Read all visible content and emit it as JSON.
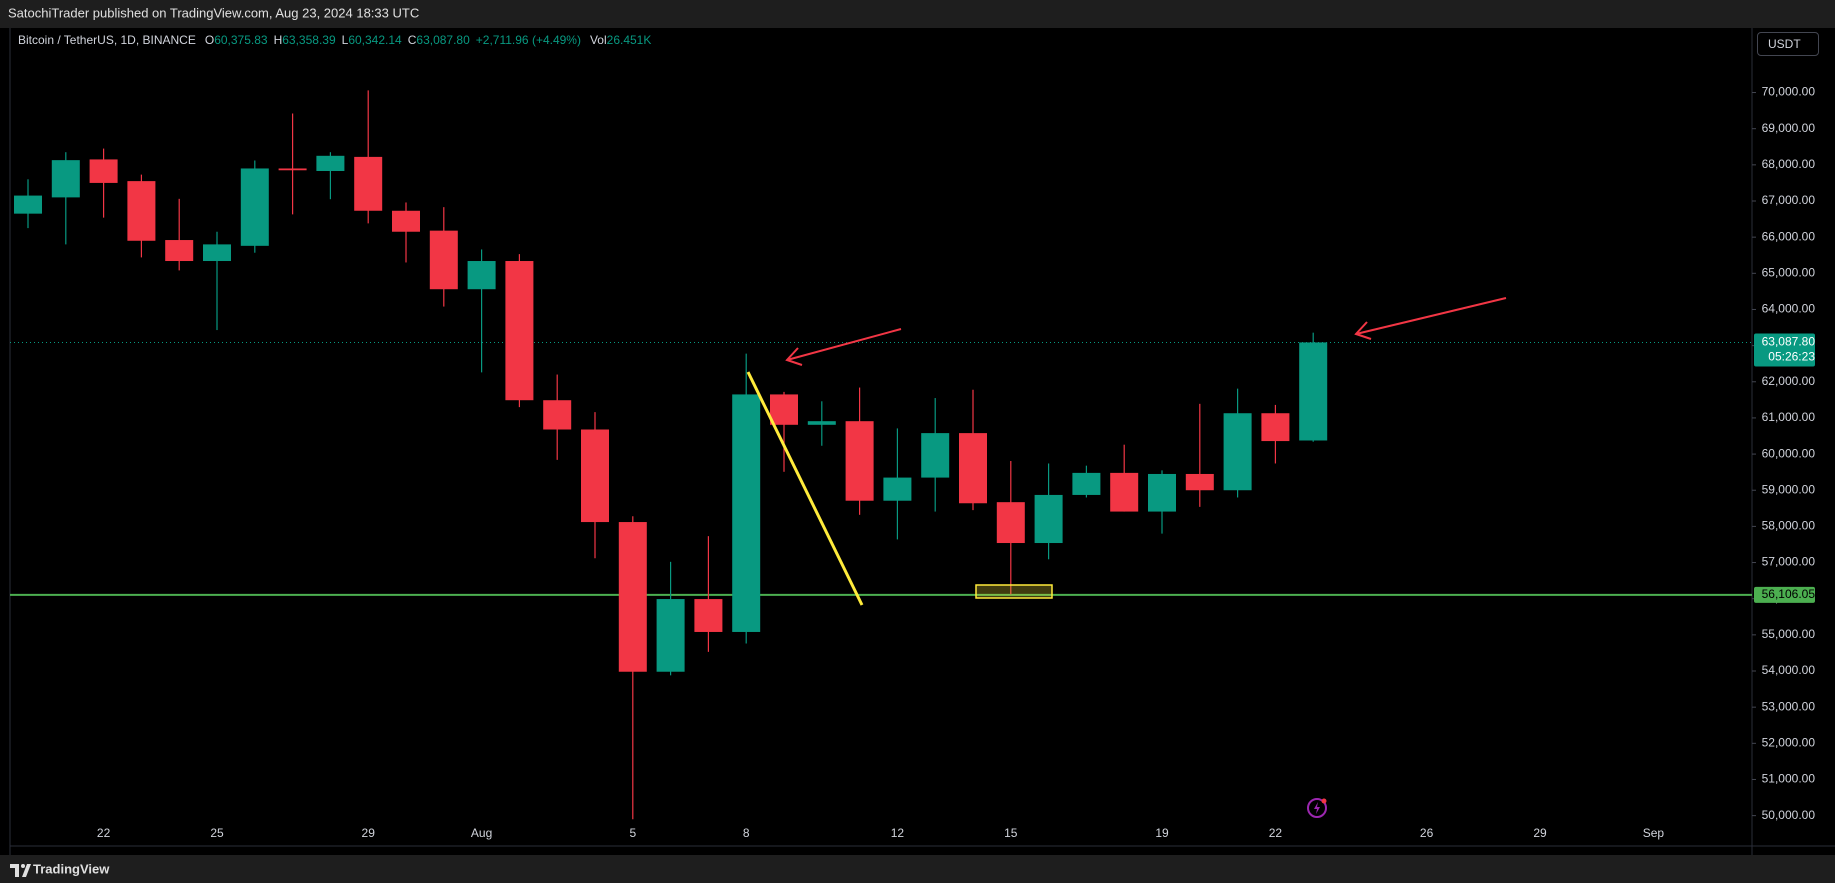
{
  "header": {
    "publisher": "SatochiTrader published on TradingView.com, Aug 23, 2024 18:33 UTC"
  },
  "footer": {
    "brand": "TradingView"
  },
  "currency_button": "USDT",
  "info": {
    "symbol": "Bitcoin / TetherUS, 1D, BINANCE",
    "fields": [
      {
        "key": "O",
        "value": "60,375.83"
      },
      {
        "key": "H",
        "value": "63,358.39"
      },
      {
        "key": "L",
        "value": "60,342.14"
      },
      {
        "key": "C",
        "value": "63,087.80"
      }
    ],
    "change": "+2,711.96 (+4.49%)",
    "volume_key": "Vol",
    "volume": "26.451K"
  },
  "chart_data": {
    "type": "candlestick",
    "categories": [
      null,
      null,
      "22",
      null,
      null,
      "25",
      null,
      null,
      null,
      "29",
      null,
      null,
      "Aug",
      null,
      null,
      null,
      "5",
      null,
      null,
      "8",
      null,
      null,
      null,
      "12",
      null,
      null,
      "15",
      null,
      null,
      null,
      "19",
      null,
      null,
      "22",
      null,
      null,
      null,
      "26",
      null,
      null,
      "29",
      null,
      null,
      "Sep",
      null,
      null
    ],
    "open": [
      66650,
      67100,
      68150,
      67550,
      65920,
      65340,
      65760,
      67900,
      67830,
      68220,
      66730,
      66180,
      64560,
      65340,
      61490,
      60680,
      58120,
      53980,
      55990,
      55080,
      61650,
      60810,
      60910,
      58710,
      59350,
      60580,
      58670,
      57540,
      58870,
      59480,
      58410,
      59450,
      59000,
      61130,
      60375.83,
      null,
      null,
      null,
      null,
      null,
      null,
      null,
      null,
      null,
      null,
      null
    ],
    "high": [
      67600,
      68350,
      68450,
      67730,
      67060,
      66150,
      68120,
      69420,
      68350,
      70060,
      66960,
      66830,
      65660,
      65530,
      62200,
      61160,
      58280,
      57020,
      57730,
      62780,
      61720,
      61460,
      61840,
      60710,
      61550,
      61780,
      59810,
      59740,
      59680,
      60260,
      59550,
      61390,
      61810,
      61360,
      63358.39,
      null,
      null,
      null,
      null,
      null,
      null,
      null,
      null,
      null,
      null,
      null
    ],
    "low": [
      66250,
      65800,
      66540,
      65440,
      65080,
      63430,
      65570,
      66630,
      67050,
      66380,
      65300,
      64080,
      62260,
      61300,
      59840,
      57120,
      49900,
      53880,
      54530,
      54760,
      59510,
      60230,
      58320,
      57640,
      58410,
      58450,
      56120,
      57090,
      58800,
      58410,
      57800,
      58540,
      58800,
      59740,
      60342.14,
      null,
      null,
      null,
      null,
      null,
      null,
      null,
      null,
      null,
      null,
      null
    ],
    "close": [
      67150,
      68130,
      67500,
      65900,
      65340,
      65800,
      67900,
      67850,
      68250,
      66730,
      66150,
      64560,
      65340,
      61490,
      60680,
      58120,
      53980,
      55990,
      55080,
      61650,
      60810,
      60910,
      58710,
      59350,
      60580,
      58640,
      57540,
      58870,
      59480,
      58410,
      59450,
      59000,
      61130,
      60360,
      63087.8,
      null,
      null,
      null,
      null,
      null,
      null,
      null,
      null,
      null,
      null,
      null
    ],
    "up_color": "#089981",
    "down_color": "#f23645",
    "ylim": [
      49160,
      71785
    ],
    "yticks": [
      {
        "value": 50000,
        "label": "50,000.00"
      },
      {
        "value": 51000,
        "label": "51,000.00"
      },
      {
        "value": 52000,
        "label": "52,000.00"
      },
      {
        "value": 53000,
        "label": "53,000.00"
      },
      {
        "value": 54000,
        "label": "54,000.00"
      },
      {
        "value": 55000,
        "label": "55,000.00"
      },
      {
        "value": 56000,
        "label": "56,000.00"
      },
      {
        "value": 57000,
        "label": "57,000.00"
      },
      {
        "value": 58000,
        "label": "58,000.00"
      },
      {
        "value": 59000,
        "label": "59,000.00"
      },
      {
        "value": 60000,
        "label": "60,000.00"
      },
      {
        "value": 61000,
        "label": "61,000.00"
      },
      {
        "value": 62000,
        "label": "62,000.00"
      },
      {
        "value": 63000,
        "label": "63,000.00"
      },
      {
        "value": 64000,
        "label": "64,000.00"
      },
      {
        "value": 65000,
        "label": "65,000.00"
      },
      {
        "value": 66000,
        "label": "66,000.00"
      },
      {
        "value": 67000,
        "label": "67,000.00"
      },
      {
        "value": 68000,
        "label": "68,000.00"
      },
      {
        "value": 69000,
        "label": "69,000.00"
      },
      {
        "value": 70000,
        "label": "70,000.00"
      }
    ],
    "grid": false,
    "hline": {
      "value": 56106.05,
      "label": "56,106.05",
      "color": "#4caf50"
    },
    "last_price": {
      "value": 63087.8,
      "label": "63,087.80",
      "countdown": "05:26:23",
      "color": "#089981"
    }
  }
}
